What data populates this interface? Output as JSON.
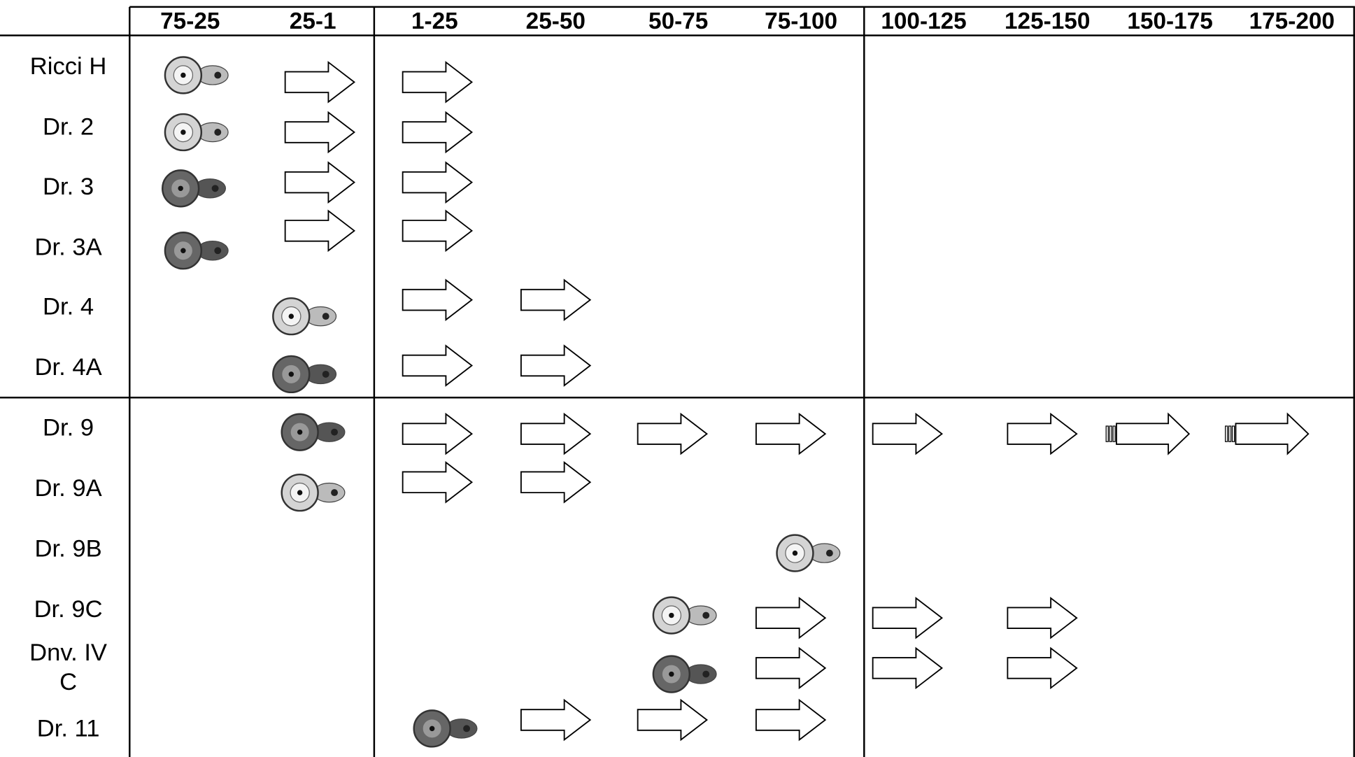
{
  "header": {
    "columns": [
      "75-25",
      "25-1",
      "1-25",
      "25-50",
      "50-75",
      "75-100",
      "100-125",
      "125-150",
      "150-175",
      "175-200"
    ]
  },
  "rows": [
    "Ricci H",
    "Dr. 2",
    "Dr. 3",
    "Dr. 3A",
    "Dr. 4",
    "Dr. 4A",
    "Dr. 9",
    "Dr. 9A",
    "Dr. 9B",
    "Dr. 9C",
    "Dnv. IV C",
    "Dr. 11"
  ]
}
